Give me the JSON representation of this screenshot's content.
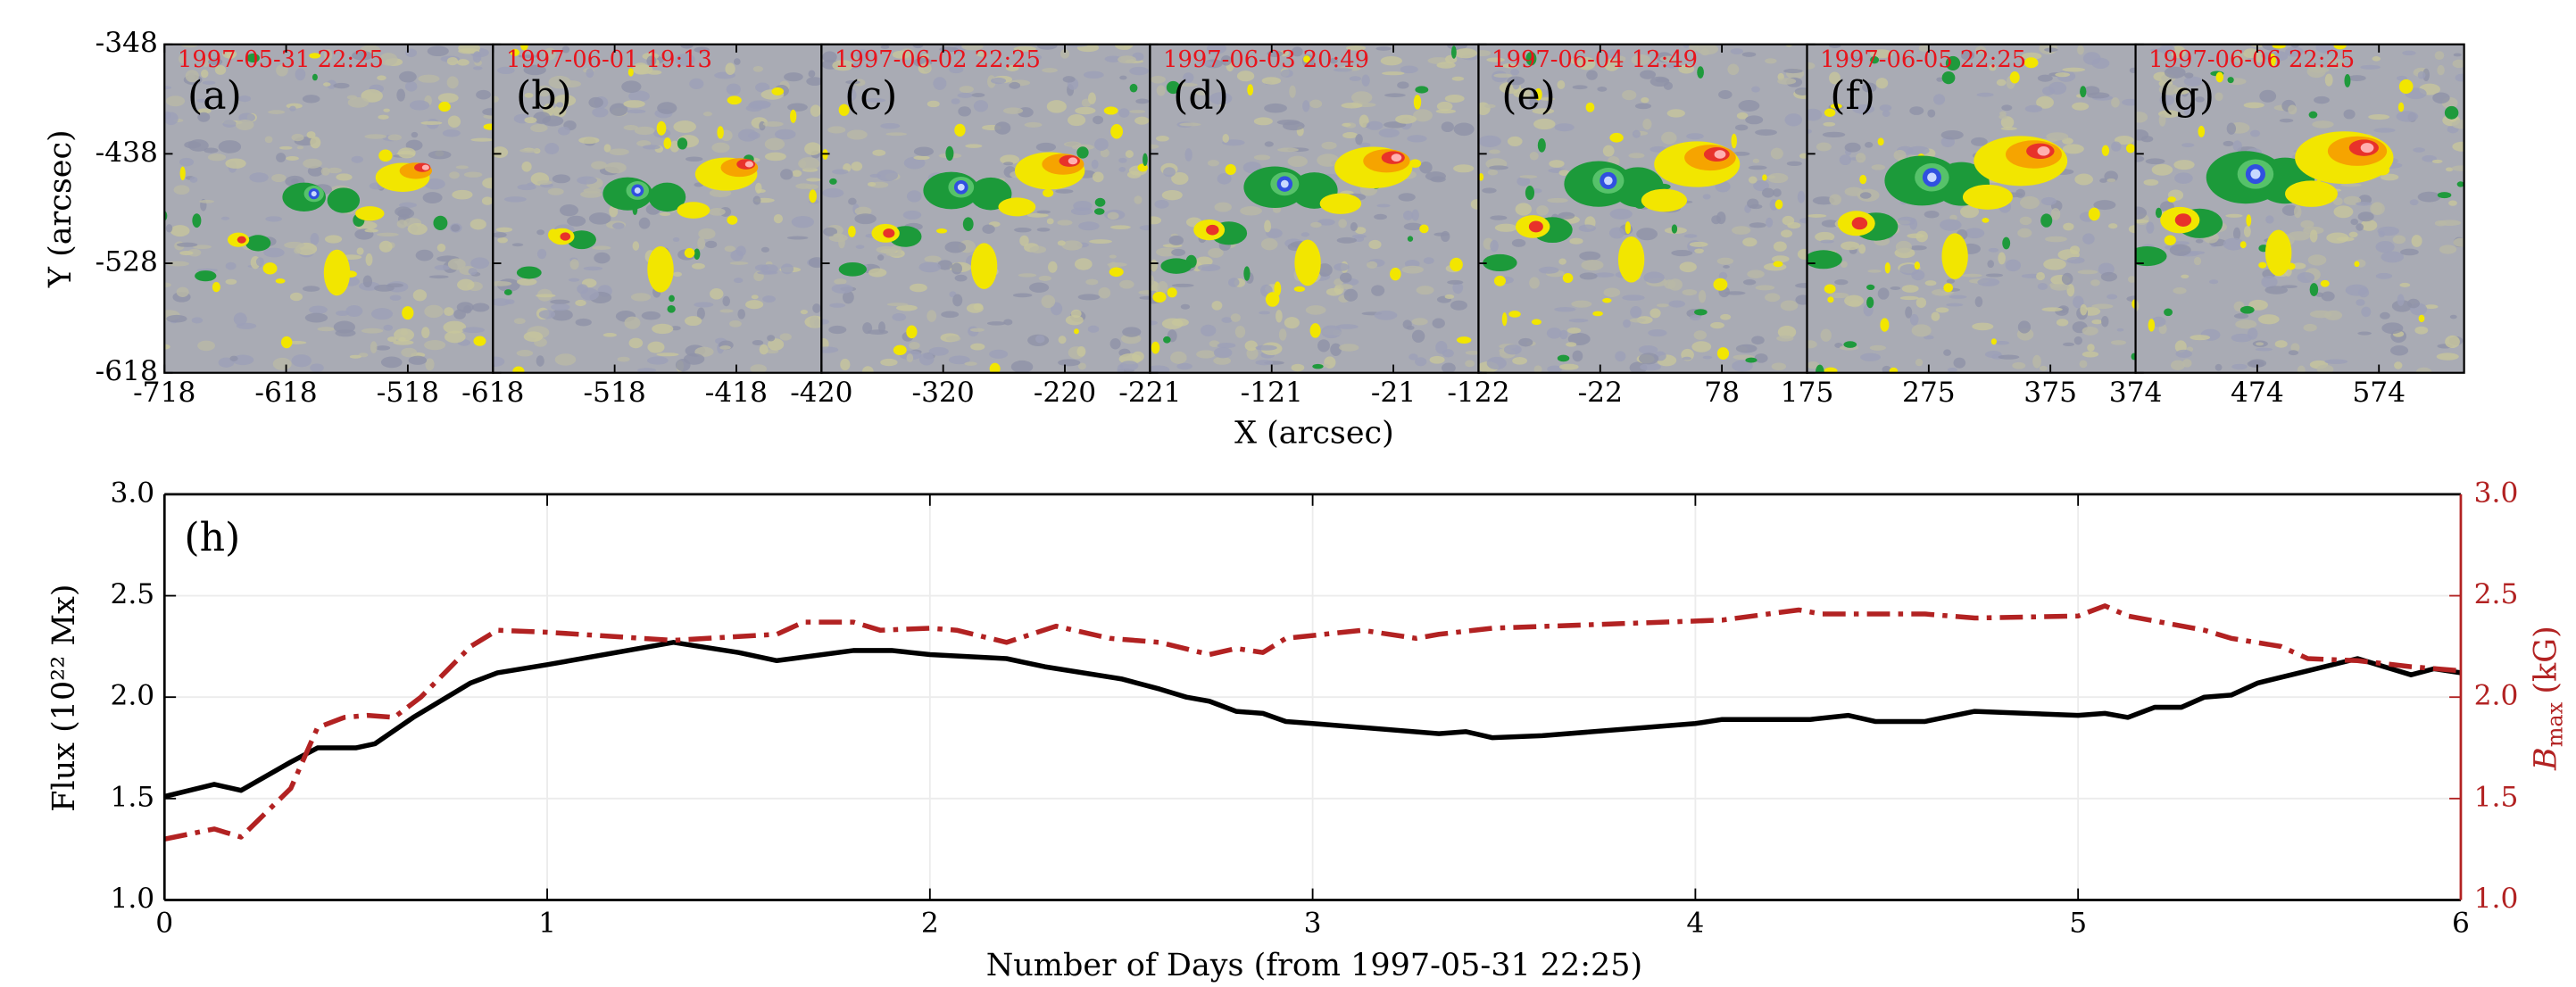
{
  "chart_data": [
    {
      "type": "image",
      "xlabel": "X (arcsec)",
      "ylabel": "Y (arcsec)",
      "ylim": [
        -618,
        -348
      ],
      "yticks": [
        -348,
        -438,
        -528,
        -618
      ],
      "panels": [
        {
          "letter": "(a)",
          "time": "1997-05-31 22:25",
          "xlim": [
            -718,
            -448
          ],
          "xticks": [
            -718,
            -618,
            -518
          ]
        },
        {
          "letter": "(b)",
          "time": "1997-06-01 19:13",
          "xlim": [
            -618,
            -348
          ],
          "xticks": [
            -618,
            -518,
            -418
          ]
        },
        {
          "letter": "(c)",
          "time": "1997-06-02 22:25",
          "xlim": [
            -420,
            -150
          ],
          "xticks": [
            -420,
            -320,
            -220
          ]
        },
        {
          "letter": "(d)",
          "time": "1997-06-03 20:49",
          "xlim": [
            -221,
            49
          ],
          "xticks": [
            -221,
            -121,
            -21
          ]
        },
        {
          "letter": "(e)",
          "time": "1997-06-04 12:49",
          "xlim": [
            -122,
            148
          ],
          "xticks": [
            -122,
            -22,
            78
          ]
        },
        {
          "letter": "(f)",
          "time": "1997-06-05 22:25",
          "xlim": [
            175,
            445
          ],
          "xticks": [
            175,
            275,
            375
          ]
        },
        {
          "letter": "(g)",
          "time": "1997-06-06 22:25",
          "xlim": [
            374,
            644
          ],
          "xticks": [
            374,
            474,
            574
          ]
        }
      ]
    },
    {
      "type": "line",
      "annotation": "(h)",
      "xlabel": "Number of Days (from 1997-05-31 22:25)",
      "ylabel": "Flux (10²² Mx)",
      "y2label": {
        "symbol": "B",
        "subscript": "max",
        "unit": "(kG)"
      },
      "xlim": [
        0,
        6
      ],
      "xticks": [
        0,
        1,
        2,
        3,
        4,
        5,
        6
      ],
      "ylim": [
        1,
        3
      ],
      "yticks": [
        {
          "value": 1,
          "label": "1.0"
        },
        1.5,
        {
          "value": 2,
          "label": "2.0"
        },
        2.5,
        {
          "value": 3,
          "label": "3.0"
        }
      ],
      "y2lim": [
        1,
        3
      ],
      "y2ticks": [
        {
          "value": 1,
          "label": "1.0"
        },
        1.5,
        {
          "value": 2,
          "label": "2.0"
        },
        2.5,
        {
          "value": 3,
          "label": "3.0"
        }
      ],
      "y2color": "#b22222",
      "grid": true,
      "series": [
        {
          "color": "#000000",
          "style": "solid",
          "x": [
            0,
            0.13,
            0.2,
            0.33,
            0.4,
            0.5,
            0.55,
            0.65,
            0.8,
            0.87,
            1.0,
            1.33,
            1.5,
            1.6,
            1.8,
            1.9,
            2.0,
            2.2,
            2.3,
            2.5,
            2.6,
            2.67,
            2.73,
            2.8,
            2.87,
            2.93,
            3.0,
            3.33,
            3.4,
            3.47,
            3.6,
            4.0,
            4.07,
            4.2,
            4.3,
            4.4,
            4.47,
            4.6,
            4.73,
            5.0,
            5.07,
            5.13,
            5.2,
            5.27,
            5.33,
            5.4,
            5.47,
            5.6,
            5.73,
            5.8,
            5.87,
            5.93,
            6.0
          ],
          "values": [
            1.51,
            1.57,
            1.54,
            1.68,
            1.75,
            1.75,
            1.77,
            1.9,
            2.07,
            2.12,
            2.16,
            2.27,
            2.22,
            2.18,
            2.23,
            2.23,
            2.21,
            2.19,
            2.15,
            2.09,
            2.04,
            2.0,
            1.98,
            1.93,
            1.92,
            1.88,
            1.87,
            1.82,
            1.83,
            1.8,
            1.81,
            1.87,
            1.89,
            1.89,
            1.89,
            1.91,
            1.88,
            1.88,
            1.93,
            1.91,
            1.92,
            1.9,
            1.95,
            1.95,
            2.0,
            2.01,
            2.07,
            2.13,
            2.19,
            2.15,
            2.11,
            2.14,
            2.12
          ]
        },
        {
          "color": "#b22222",
          "style": "dashdot",
          "axis": "y2",
          "x": [
            0,
            0.13,
            0.2,
            0.33,
            0.4,
            0.47,
            0.53,
            0.6,
            0.67,
            0.8,
            0.87,
            1.0,
            1.33,
            1.6,
            1.67,
            1.8,
            1.87,
            2.0,
            2.07,
            2.2,
            2.33,
            2.47,
            2.6,
            2.73,
            2.8,
            2.87,
            2.93,
            3.13,
            3.27,
            3.33,
            3.47,
            4.07,
            4.27,
            4.33,
            4.6,
            4.73,
            5.0,
            5.07,
            5.13,
            5.33,
            5.4,
            5.53,
            5.6,
            5.73,
            5.87,
            6.0
          ],
          "values": [
            1.3,
            1.35,
            1.31,
            1.55,
            1.85,
            1.9,
            1.91,
            1.9,
            2.0,
            2.25,
            2.33,
            2.32,
            2.28,
            2.31,
            2.37,
            2.37,
            2.33,
            2.34,
            2.33,
            2.27,
            2.35,
            2.29,
            2.27,
            2.21,
            2.24,
            2.22,
            2.29,
            2.33,
            2.29,
            2.31,
            2.34,
            2.38,
            2.43,
            2.41,
            2.41,
            2.39,
            2.4,
            2.45,
            2.4,
            2.33,
            2.29,
            2.25,
            2.19,
            2.18,
            2.15,
            2.13
          ]
        }
      ]
    }
  ]
}
